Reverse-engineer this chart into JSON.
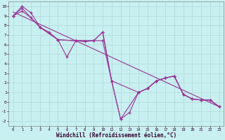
{
  "xlabel": "Windchill (Refroidissement éolien,°C)",
  "background_color": "#c8f0f0",
  "grid_color": "#b0d8d8",
  "line_color": "#993399",
  "xlim": [
    -0.5,
    23.5
  ],
  "ylim": [
    -2.5,
    10.5
  ],
  "xticks": [
    0,
    1,
    2,
    3,
    4,
    5,
    6,
    7,
    8,
    9,
    10,
    11,
    12,
    13,
    14,
    15,
    16,
    17,
    18,
    19,
    20,
    21,
    22,
    23
  ],
  "yticks": [
    -2,
    -1,
    0,
    1,
    2,
    3,
    4,
    5,
    6,
    7,
    8,
    9,
    10
  ],
  "line1_x": [
    0,
    1,
    2,
    3,
    4,
    5,
    6,
    7,
    8,
    9,
    10,
    11,
    12,
    13,
    14,
    15,
    16,
    17,
    18,
    19,
    20,
    21,
    22,
    23
  ],
  "line1_y": [
    9.0,
    10.0,
    9.3,
    7.8,
    7.3,
    6.5,
    4.7,
    6.4,
    6.3,
    6.4,
    7.3,
    2.2,
    -1.8,
    -1.1,
    1.0,
    1.4,
    2.2,
    2.5,
    2.7,
    0.8,
    0.3,
    0.2,
    0.2,
    -0.5
  ],
  "line2_x": [
    0,
    1,
    2,
    3,
    5,
    7,
    10,
    11,
    12,
    14,
    15,
    16,
    17,
    18,
    19,
    20,
    21,
    22,
    23
  ],
  "line2_y": [
    9.0,
    9.5,
    8.8,
    7.8,
    6.5,
    6.4,
    6.4,
    2.2,
    -1.8,
    1.0,
    1.4,
    2.2,
    2.5,
    2.7,
    0.8,
    0.3,
    0.2,
    0.2,
    -0.5
  ],
  "line3_x": [
    0,
    1,
    3,
    5,
    7,
    9,
    10,
    11,
    14,
    15,
    16,
    17,
    18,
    19,
    20,
    21,
    22,
    23
  ],
  "line3_y": [
    9.0,
    9.8,
    7.8,
    6.5,
    6.4,
    6.4,
    7.3,
    2.2,
    1.0,
    1.4,
    2.2,
    2.5,
    2.7,
    0.8,
    0.3,
    0.2,
    0.2,
    -0.5
  ],
  "trend_x": [
    0,
    23
  ],
  "trend_y": [
    9.4,
    -0.5
  ]
}
